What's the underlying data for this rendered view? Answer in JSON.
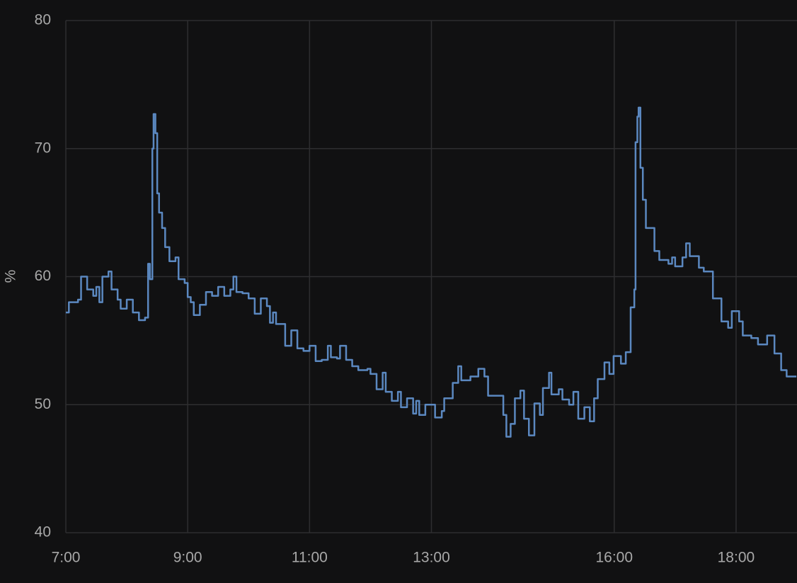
{
  "chart_data": {
    "type": "line",
    "step": true,
    "y_label": "%",
    "color": "#5b88c0",
    "grid": true,
    "xlim": [
      7,
      19
    ],
    "ylim": [
      40,
      80
    ],
    "xticks": [
      {
        "value": 7,
        "label": "7:00"
      },
      {
        "value": 9,
        "label": "9:00"
      },
      {
        "value": 11,
        "label": "11:00"
      },
      {
        "value": 13,
        "label": "13:00"
      },
      {
        "value": 16,
        "label": "16:00"
      },
      {
        "value": 18,
        "label": "18:00"
      }
    ],
    "yticks": [
      40,
      50,
      60,
      70,
      80
    ],
    "x": [
      7.0,
      7.05,
      7.2,
      7.25,
      7.35,
      7.45,
      7.5,
      7.55,
      7.6,
      7.7,
      7.75,
      7.85,
      7.9,
      8.0,
      8.1,
      8.2,
      8.3,
      8.35,
      8.38,
      8.42,
      8.44,
      8.47,
      8.5,
      8.53,
      8.58,
      8.63,
      8.7,
      8.8,
      8.85,
      8.95,
      9.0,
      9.05,
      9.1,
      9.2,
      9.3,
      9.4,
      9.5,
      9.6,
      9.7,
      9.75,
      9.8,
      9.9,
      10.0,
      10.1,
      10.2,
      10.3,
      10.35,
      10.4,
      10.45,
      10.6,
      10.7,
      10.8,
      10.9,
      11.0,
      11.1,
      11.2,
      11.3,
      11.35,
      11.45,
      11.5,
      11.6,
      11.7,
      11.8,
      11.95,
      12.0,
      12.1,
      12.2,
      12.25,
      12.35,
      12.45,
      12.5,
      12.6,
      12.7,
      12.75,
      12.8,
      12.9,
      13.0,
      13.06,
      13.17,
      13.21,
      13.35,
      13.44,
      13.49,
      13.64,
      13.77,
      13.87,
      13.93,
      14.04,
      14.18,
      14.23,
      14.3,
      14.37,
      14.46,
      14.52,
      14.6,
      14.69,
      14.78,
      14.83,
      14.93,
      14.97,
      15.09,
      15.15,
      15.26,
      15.33,
      15.41,
      15.51,
      15.6,
      15.67,
      15.73,
      15.84,
      15.92,
      15.99,
      16.11,
      16.19,
      16.27,
      16.33,
      16.35,
      16.38,
      16.4,
      16.43,
      16.47,
      16.52,
      16.66,
      16.74,
      16.89,
      16.95,
      17.0,
      17.12,
      17.18,
      17.24,
      17.39,
      17.47,
      17.62,
      17.76,
      17.87,
      17.93,
      18.05,
      18.11,
      18.25,
      18.36,
      18.51,
      18.63,
      18.74,
      18.83,
      18.99
    ],
    "values": [
      57.2,
      58.0,
      58.2,
      60.0,
      59.0,
      58.5,
      59.2,
      58.0,
      60.0,
      60.4,
      59.0,
      58.2,
      57.5,
      58.2,
      57.2,
      56.6,
      56.8,
      61.0,
      59.8,
      70.0,
      72.7,
      71.2,
      66.5,
      65.0,
      63.8,
      62.3,
      61.2,
      61.5,
      59.8,
      59.5,
      58.4,
      58.0,
      57.0,
      57.8,
      58.8,
      58.5,
      59.2,
      58.5,
      59.0,
      60.0,
      58.8,
      58.7,
      58.3,
      57.1,
      58.3,
      57.7,
      56.4,
      57.2,
      56.3,
      54.6,
      55.8,
      54.4,
      54.2,
      54.6,
      53.4,
      53.5,
      54.6,
      53.7,
      53.6,
      54.6,
      53.5,
      53.0,
      52.7,
      52.8,
      52.4,
      51.2,
      52.5,
      51.0,
      50.3,
      51.0,
      49.8,
      50.5,
      49.3,
      50.3,
      49.2,
      50.0,
      50.0,
      49.0,
      49.5,
      50.5,
      51.7,
      53.0,
      51.9,
      52.2,
      52.8,
      52.2,
      50.7,
      50.7,
      49.2,
      47.5,
      48.5,
      50.5,
      51.1,
      48.9,
      47.6,
      50.1,
      49.2,
      51.3,
      52.5,
      50.8,
      51.2,
      50.4,
      50.0,
      51.0,
      48.9,
      49.8,
      48.7,
      50.5,
      52.0,
      53.3,
      52.4,
      53.8,
      53.2,
      54.1,
      57.6,
      59.0,
      70.5,
      72.5,
      73.2,
      68.5,
      66.0,
      63.8,
      62.0,
      61.3,
      61.0,
      61.5,
      60.8,
      61.5,
      62.6,
      61.6,
      60.7,
      60.4,
      58.3,
      56.5,
      56.0,
      57.3,
      56.5,
      55.4,
      55.2,
      54.7,
      55.4,
      54.0,
      52.7,
      52.2,
      52.2
    ]
  }
}
